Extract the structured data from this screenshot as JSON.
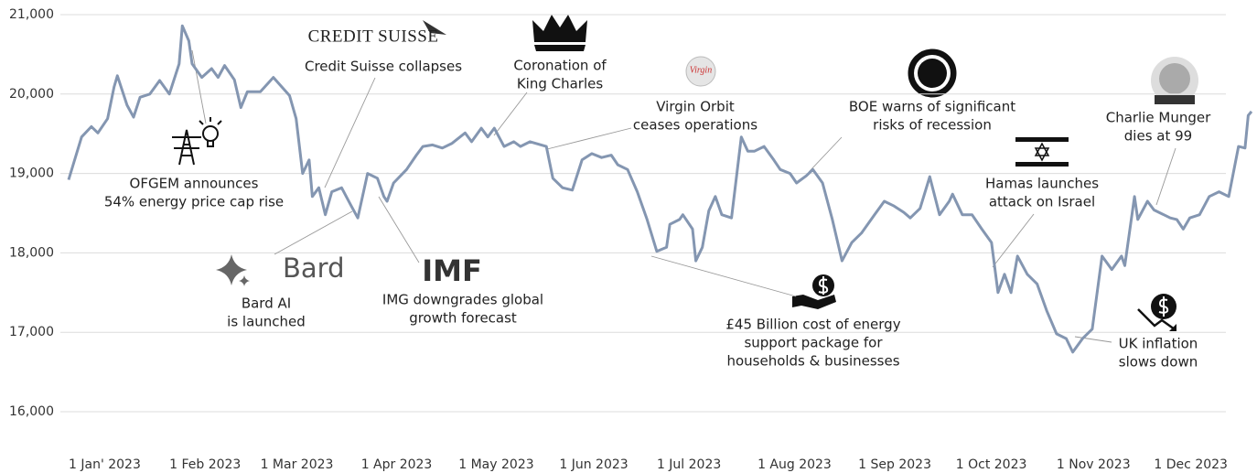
{
  "chart_data": {
    "type": "line",
    "x": [
      "2023-01-01",
      "2023-01-05",
      "2023-01-08",
      "2023-01-10",
      "2023-01-13",
      "2023-01-15",
      "2023-01-16",
      "2023-01-19",
      "2023-01-21",
      "2023-01-23",
      "2023-01-26",
      "2023-01-29",
      "2023-02-01",
      "2023-02-04",
      "2023-02-05",
      "2023-02-07",
      "2023-02-08",
      "2023-02-11",
      "2023-02-14",
      "2023-02-16",
      "2023-02-18",
      "2023-02-21",
      "2023-02-23",
      "2023-02-25",
      "2023-03-01",
      "2023-03-05",
      "2023-03-10",
      "2023-03-12",
      "2023-03-14",
      "2023-03-16",
      "2023-03-17",
      "2023-03-19",
      "2023-03-21",
      "2023-03-23",
      "2023-03-26",
      "2023-03-29",
      "2023-03-31",
      "2023-04-03",
      "2023-04-06",
      "2023-04-08",
      "2023-04-09",
      "2023-04-11",
      "2023-04-15",
      "2023-04-18",
      "2023-04-20",
      "2023-04-23",
      "2023-04-26",
      "2023-04-29",
      "2023-05-03",
      "2023-05-05",
      "2023-05-08",
      "2023-05-10",
      "2023-05-12",
      "2023-05-15",
      "2023-05-18",
      "2023-05-20",
      "2023-05-23",
      "2023-05-28",
      "2023-05-30",
      "2023-06-02",
      "2023-06-05",
      "2023-06-08",
      "2023-06-11",
      "2023-06-14",
      "2023-06-17",
      "2023-06-19",
      "2023-06-22",
      "2023-06-25",
      "2023-06-28",
      "2023-07-01",
      "2023-07-04",
      "2023-07-05",
      "2023-07-08",
      "2023-07-09",
      "2023-07-12",
      "2023-07-13",
      "2023-07-15",
      "2023-07-17",
      "2023-07-19",
      "2023-07-21",
      "2023-07-24",
      "2023-07-27",
      "2023-07-29",
      "2023-07-31",
      "2023-08-03",
      "2023-08-06",
      "2023-08-08",
      "2023-08-11",
      "2023-08-13",
      "2023-08-16",
      "2023-08-18",
      "2023-08-21",
      "2023-08-24",
      "2023-08-27",
      "2023-08-30",
      "2023-09-02",
      "2023-09-06",
      "2023-09-09",
      "2023-09-12",
      "2023-09-15",
      "2023-09-17",
      "2023-09-20",
      "2023-09-23",
      "2023-09-26",
      "2023-09-29",
      "2023-09-30",
      "2023-10-03",
      "2023-10-06",
      "2023-10-09",
      "2023-10-12",
      "2023-10-14",
      "2023-10-16",
      "2023-10-18",
      "2023-10-20",
      "2023-10-23",
      "2023-10-26",
      "2023-10-29",
      "2023-11-01",
      "2023-11-04",
      "2023-11-06",
      "2023-11-09",
      "2023-11-12",
      "2023-11-15",
      "2023-11-18",
      "2023-11-21",
      "2023-11-22",
      "2023-11-25",
      "2023-11-26",
      "2023-11-29",
      "2023-12-01",
      "2023-12-04",
      "2023-12-06",
      "2023-12-08",
      "2023-12-10",
      "2023-12-12",
      "2023-12-15",
      "2023-12-18",
      "2023-12-21",
      "2023-12-24",
      "2023-12-27",
      "2023-12-29",
      "2023-12-30",
      "2023-12-31"
    ],
    "series": [
      {
        "color": "#8496b1",
        "values": [
          18920,
          19460,
          19590,
          19510,
          19690,
          20090,
          20230,
          19860,
          19710,
          19960,
          20000,
          20170,
          20000,
          20380,
          20860,
          20670,
          20380,
          20210,
          20320,
          20210,
          20360,
          20180,
          19830,
          20030,
          20030,
          20210,
          19980,
          19690,
          19000,
          19170,
          18710,
          18820,
          18480,
          18770,
          18820,
          18590,
          18440,
          19000,
          18940,
          18710,
          18650,
          18880,
          19050,
          19230,
          19340,
          19360,
          19320,
          19380,
          19510,
          19400,
          19570,
          19460,
          19570,
          19340,
          19400,
          19340,
          19400,
          19340,
          18940,
          18820,
          18790,
          19170,
          19250,
          19200,
          19230,
          19110,
          19050,
          18770,
          18420,
          18020,
          18070,
          18360,
          18420,
          18480,
          18300,
          17900,
          18070,
          18530,
          18710,
          18480,
          18440,
          19460,
          19280,
          19280,
          19340,
          19170,
          19050,
          19000,
          18880,
          18970,
          19050,
          18880,
          18420,
          17900,
          18130,
          18250,
          18480,
          18650,
          18590,
          18510,
          18440,
          18560,
          18960,
          18480,
          18650,
          18740,
          18480,
          18480,
          18300,
          18130,
          17500,
          17730,
          17500,
          17960,
          17730,
          17610,
          17270,
          16980,
          16920,
          16750,
          16920,
          17040,
          17960,
          17790,
          17960,
          17840,
          18710,
          18420,
          18650,
          18540,
          18480,
          18440,
          18420,
          18300,
          18440,
          18480,
          18710,
          18770,
          18710,
          19340,
          19320,
          19730,
          19780
        ]
      }
    ],
    "xlim": [
      "2023-01-01",
      "2023-12-31"
    ],
    "xticks": [
      {
        "value": "2023-01-01",
        "label": "1 Jan' 2023"
      },
      {
        "value": "2023-02-01",
        "label": "1 Feb 2023"
      },
      {
        "value": "2023-03-01",
        "label": "1 Mar 2023"
      },
      {
        "value": "2023-04-01",
        "label": "1 Apr 2023"
      },
      {
        "value": "2023-05-01",
        "label": "1 May 2023"
      },
      {
        "value": "2023-06-01",
        "label": "1 Jun 2023"
      },
      {
        "value": "2023-07-01",
        "label": "1 Jul 2023"
      },
      {
        "value": "2023-08-01",
        "label": "1 Aug 2023"
      },
      {
        "value": "2023-09-01",
        "label": "1 Sep 2023"
      },
      {
        "value": "2023-10-01",
        "label": "1 Oct 2023"
      },
      {
        "value": "2023-11-01",
        "label": "1 Nov 2023"
      },
      {
        "value": "2023-12-01",
        "label": "1 Dec 2023"
      }
    ],
    "ylim": [
      16000,
      21000
    ],
    "yticks": [
      {
        "value": 16000,
        "label": "16,000"
      },
      {
        "value": 17000,
        "label": "17,000"
      },
      {
        "value": 18000,
        "label": "18,000"
      },
      {
        "value": 19000,
        "label": "19,000"
      },
      {
        "value": 20000,
        "label": "20,000"
      },
      {
        "value": 21000,
        "label": "21,000"
      }
    ],
    "grid": true,
    "annotations": [
      {
        "lines": [
          "OFGEM announces",
          "54% energy price cap rise"
        ]
      },
      {
        "logo": "CREDIT SUISSE",
        "lines": [
          "Credit Suisse collapses"
        ]
      },
      {
        "lines": [
          "Coronation of",
          "King Charles"
        ]
      },
      {
        "logo": "Virgin",
        "lines": [
          "Virgin Orbit",
          "ceases operations"
        ]
      },
      {
        "lines": [
          "£45 Billion cost of energy",
          "support package for",
          "households & businesses"
        ]
      },
      {
        "lines": [
          "BOE warns of significant",
          "risks of recession"
        ]
      },
      {
        "lines": [
          "Hamas launches",
          "attack on Israel"
        ]
      },
      {
        "lines": [
          "Charlie Munger",
          "dies at 99"
        ]
      },
      {
        "lines": [
          "UK inflation",
          "slows down"
        ]
      },
      {
        "logo": "IMF",
        "lines": [
          "IMG downgrades global",
          "growth forecast"
        ]
      },
      {
        "logo": "Bard",
        "lines": [
          "Bard AI",
          "is launched"
        ]
      }
    ]
  }
}
